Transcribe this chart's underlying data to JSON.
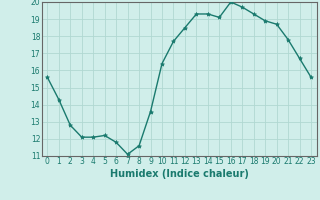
{
  "x": [
    0,
    1,
    2,
    3,
    4,
    5,
    6,
    7,
    8,
    9,
    10,
    11,
    12,
    13,
    14,
    15,
    16,
    17,
    18,
    19,
    20,
    21,
    22,
    23
  ],
  "y": [
    15.6,
    14.3,
    12.8,
    12.1,
    12.1,
    12.2,
    11.8,
    11.1,
    11.6,
    13.6,
    16.4,
    17.7,
    18.5,
    19.3,
    19.3,
    19.1,
    20.0,
    19.7,
    19.3,
    18.9,
    18.7,
    17.8,
    16.7,
    15.6
  ],
  "xlabel": "Humidex (Indice chaleur)",
  "ylim": [
    11,
    20
  ],
  "xlim_min": -0.5,
  "xlim_max": 23.5,
  "yticks": [
    11,
    12,
    13,
    14,
    15,
    16,
    17,
    18,
    19,
    20
  ],
  "xticks": [
    0,
    1,
    2,
    3,
    4,
    5,
    6,
    7,
    8,
    9,
    10,
    11,
    12,
    13,
    14,
    15,
    16,
    17,
    18,
    19,
    20,
    21,
    22,
    23
  ],
  "line_color": "#1a7a6e",
  "marker_color": "#1a7a6e",
  "bg_color": "#d0eeea",
  "grid_color": "#b0d8d2",
  "spine_color": "#666666",
  "tick_label_color": "#1a7a6e",
  "xlabel_color": "#1a7a6e",
  "tick_fontsize": 5.5,
  "xlabel_fontsize": 7.0,
  "linewidth": 1.0,
  "markersize": 3.0
}
